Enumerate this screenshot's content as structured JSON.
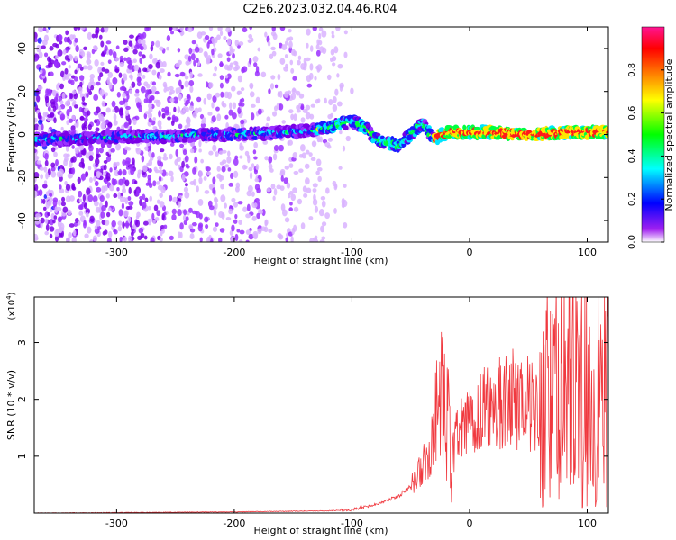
{
  "title": "C2E6.2023.032.04.46.R04",
  "chart_data": [
    {
      "type": "heatmap",
      "xlabel": "Height of straight line (km)",
      "ylabel": "Frequency (Hz)",
      "xlim": [
        -370,
        118
      ],
      "ylim": [
        -50,
        50
      ],
      "xticks": [
        "-300",
        "-200",
        "-100",
        "0",
        "100"
      ],
      "yticks": [
        "-40",
        "-20",
        "0",
        "20",
        "40"
      ],
      "grid": false,
      "colorbar": {
        "label": "Normalized spectral amplitude",
        "range": [
          0,
          1
        ],
        "ticks": [
          "0.0",
          "0.2",
          "0.4",
          "0.6",
          "0.8"
        ],
        "colormap": [
          "#ffffff",
          "#a020f0",
          "#0000ff",
          "#00ffff",
          "#00ff00",
          "#ffff00",
          "#ff8000",
          "#ff0000",
          "#ff1493"
        ]
      },
      "ridge": {
        "x": [
          -360,
          -340,
          -300,
          -260,
          -230,
          -200,
          -160,
          -130,
          -110,
          -100,
          -90,
          -80,
          -70,
          -60,
          -50,
          -40,
          -30,
          -20,
          0,
          20,
          40,
          60,
          80,
          100,
          118
        ],
        "y": [
          -2,
          -2,
          -1,
          -1,
          0,
          0,
          1,
          2,
          5,
          6,
          4,
          -2,
          -4,
          -5,
          0,
          5,
          -2,
          1,
          1,
          1,
          0,
          0,
          1,
          1,
          1
        ]
      },
      "scatter_extent_x": [
        -370,
        -100
      ]
    },
    {
      "type": "line",
      "xlabel": "Height of straight line (km)",
      "ylabel": "SNR (10 * v/v)",
      "multiplier": "(x10",
      "multiplier_exp": "4",
      "multiplier_close": ")",
      "xlim": [
        -370,
        118
      ],
      "ylim": [
        0,
        3.8
      ],
      "xticks": [
        "-300",
        "-200",
        "-100",
        "0",
        "100"
      ],
      "yticks": [
        "1",
        "2",
        "3"
      ],
      "grid": false,
      "color": "#f0393f",
      "envelope": {
        "x": [
          -370,
          -200,
          -120,
          -100,
          -80,
          -60,
          -45,
          -35,
          -25,
          -20,
          -15,
          -10,
          -5,
          0,
          10,
          20,
          30,
          40,
          50,
          60,
          70,
          80,
          90,
          100,
          110,
          118
        ],
        "y": [
          0.0,
          0.02,
          0.04,
          0.06,
          0.15,
          0.3,
          0.6,
          1.0,
          1.6,
          1.4,
          1.1,
          1.3,
          1.5,
          1.6,
          1.8,
          1.9,
          2.0,
          2.0,
          1.95,
          2.0,
          2.05,
          2.1,
          2.1,
          2.0,
          2.0,
          2.0
        ]
      }
    }
  ]
}
